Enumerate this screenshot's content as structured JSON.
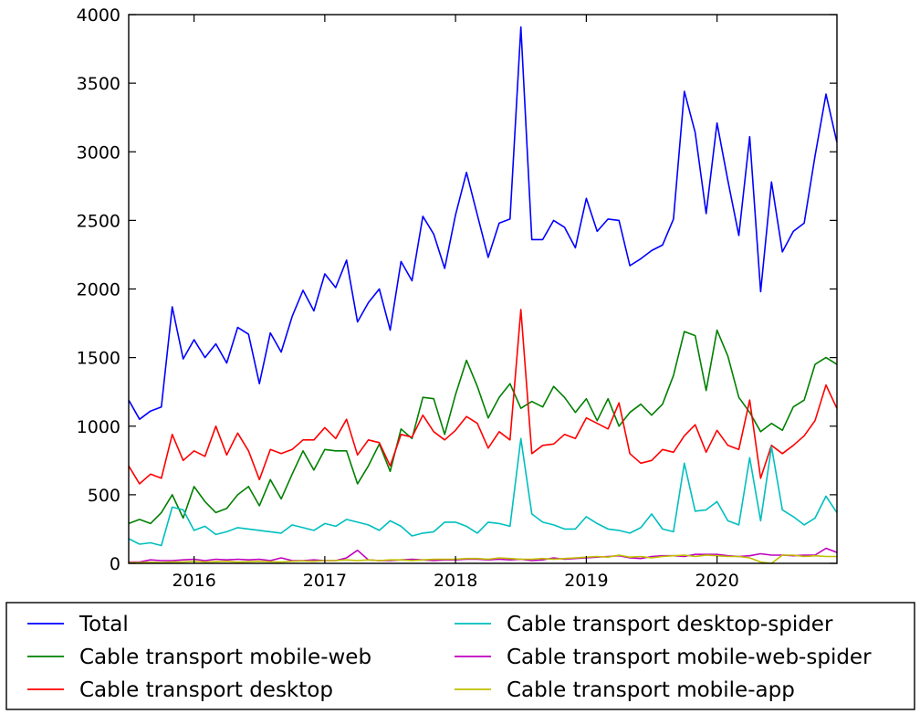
{
  "chart_data": {
    "type": "line",
    "title": "",
    "xlabel": "",
    "ylabel": "",
    "xlim": [
      2015.5,
      2020.917
    ],
    "ylim": [
      0,
      4000
    ],
    "grid": false,
    "legend_position": "bottom, outside plot, two columns",
    "x_ticks": [
      {
        "value": 2016,
        "label": "2016"
      },
      {
        "value": 2017,
        "label": "2017"
      },
      {
        "value": 2018,
        "label": "2018"
      },
      {
        "value": 2019,
        "label": "2019"
      },
      {
        "value": 2020,
        "label": "2020"
      }
    ],
    "y_ticks": [
      {
        "value": 0,
        "label": "0"
      },
      {
        "value": 500,
        "label": "500"
      },
      {
        "value": 1000,
        "label": "1000"
      },
      {
        "value": 1500,
        "label": "1500"
      },
      {
        "value": 2000,
        "label": "2000"
      },
      {
        "value": 2500,
        "label": "2500"
      },
      {
        "value": 3000,
        "label": "3000"
      },
      {
        "value": 3500,
        "label": "3500"
      },
      {
        "value": 4000,
        "label": "4000"
      }
    ],
    "x_start": 2015.5,
    "x_step": 0.08333,
    "series": [
      {
        "name": "Total",
        "slug": "total",
        "color": "#0000ff",
        "values": [
          1190,
          1050,
          1110,
          1140,
          1870,
          1490,
          1630,
          1500,
          1600,
          1460,
          1720,
          1670,
          1310,
          1680,
          1540,
          1800,
          1990,
          1840,
          2110,
          2010,
          2210,
          1760,
          1900,
          2000,
          1700,
          2200,
          2060,
          2530,
          2400,
          2150,
          2540,
          2850,
          2540,
          2230,
          2480,
          2510,
          3910,
          2360,
          2360,
          2500,
          2450,
          2300,
          2660,
          2420,
          2510,
          2500,
          2170,
          2220,
          2280,
          2320,
          2510,
          3440,
          3140,
          2550,
          3210,
          2790,
          2390,
          3110,
          1980,
          2780,
          2270,
          2420,
          2480,
          2970,
          3420,
          3070
        ]
      },
      {
        "name": "Cable transport mobile-web",
        "slug": "mobile-web",
        "color": "#008000",
        "values": [
          290,
          320,
          290,
          370,
          500,
          330,
          560,
          450,
          370,
          400,
          500,
          560,
          420,
          610,
          470,
          650,
          820,
          680,
          830,
          820,
          820,
          580,
          710,
          870,
          670,
          980,
          910,
          1210,
          1200,
          940,
          1230,
          1480,
          1290,
          1060,
          1210,
          1310,
          1130,
          1180,
          1140,
          1290,
          1210,
          1100,
          1200,
          1040,
          1200,
          1000,
          1100,
          1160,
          1080,
          1160,
          1370,
          1690,
          1660,
          1260,
          1700,
          1510,
          1210,
          1100,
          960,
          1020,
          970,
          1140,
          1190,
          1450,
          1500,
          1450
        ]
      },
      {
        "name": "Cable transport desktop",
        "slug": "desktop",
        "color": "#ff0000",
        "values": [
          710,
          580,
          650,
          620,
          940,
          750,
          820,
          780,
          1000,
          790,
          950,
          820,
          610,
          830,
          800,
          830,
          900,
          900,
          990,
          910,
          1050,
          790,
          900,
          880,
          710,
          940,
          920,
          1080,
          960,
          900,
          970,
          1070,
          1020,
          840,
          960,
          900,
          1850,
          800,
          860,
          870,
          940,
          910,
          1060,
          1020,
          980,
          1170,
          800,
          730,
          750,
          830,
          810,
          930,
          1010,
          810,
          970,
          860,
          830,
          1190,
          620,
          860,
          800,
          860,
          930,
          1040,
          1300,
          1130
        ]
      },
      {
        "name": "Cable transport desktop-spider",
        "slug": "desktop-spider",
        "color": "#00bfbf",
        "values": [
          180,
          140,
          150,
          130,
          410,
          390,
          240,
          270,
          210,
          230,
          260,
          250,
          240,
          230,
          220,
          280,
          260,
          240,
          290,
          270,
          320,
          300,
          280,
          240,
          310,
          270,
          200,
          220,
          230,
          300,
          300,
          270,
          220,
          300,
          290,
          270,
          910,
          360,
          300,
          280,
          250,
          250,
          340,
          290,
          250,
          240,
          220,
          260,
          360,
          250,
          230,
          730,
          380,
          390,
          450,
          310,
          280,
          770,
          310,
          850,
          390,
          340,
          280,
          330,
          490,
          370
        ]
      },
      {
        "name": "Cable transport mobile-web-spider",
        "slug": "mobile-web-spider",
        "color": "#bf00bf",
        "values": [
          10,
          10,
          25,
          20,
          20,
          25,
          30,
          20,
          30,
          25,
          30,
          25,
          30,
          20,
          40,
          20,
          20,
          25,
          20,
          20,
          40,
          95,
          25,
          20,
          20,
          25,
          30,
          25,
          20,
          25,
          25,
          30,
          30,
          25,
          30,
          25,
          30,
          20,
          25,
          40,
          30,
          35,
          40,
          45,
          50,
          55,
          40,
          35,
          50,
          55,
          55,
          50,
          65,
          65,
          65,
          55,
          50,
          55,
          70,
          60,
          60,
          55,
          60,
          60,
          110,
          80
        ]
      },
      {
        "name": "Cable transport mobile-app",
        "slug": "mobile-app",
        "color": "#bfbf00",
        "values": [
          5,
          5,
          8,
          5,
          10,
          10,
          15,
          10,
          12,
          15,
          10,
          12,
          15,
          12,
          10,
          15,
          18,
          15,
          20,
          20,
          25,
          20,
          25,
          20,
          25,
          25,
          20,
          25,
          30,
          30,
          30,
          35,
          35,
          30,
          40,
          35,
          30,
          30,
          35,
          30,
          35,
          40,
          45,
          50,
          45,
          60,
          45,
          50,
          40,
          50,
          55,
          60,
          50,
          60,
          55,
          50,
          50,
          40,
          10,
          0,
          60,
          60,
          50,
          55,
          50,
          50
        ]
      }
    ]
  }
}
